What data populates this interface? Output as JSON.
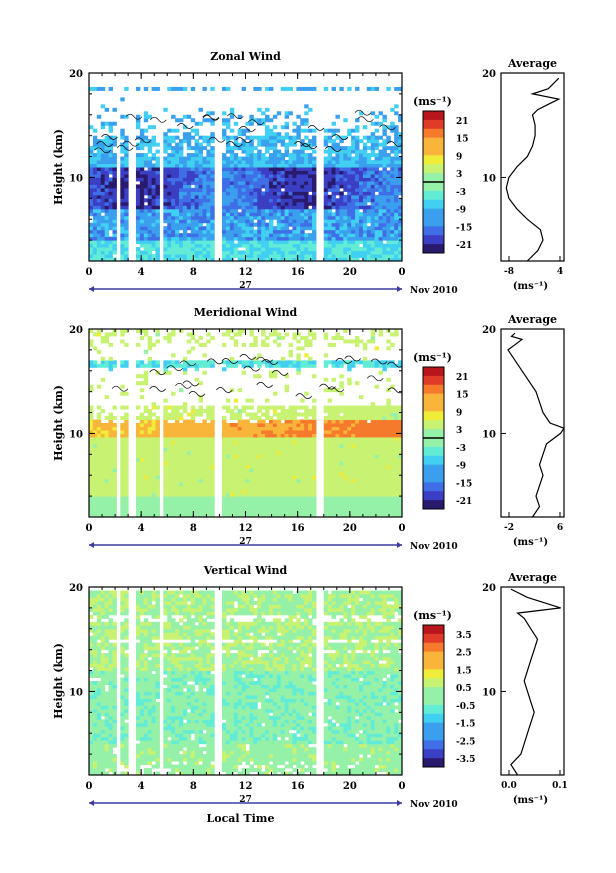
{
  "date_label": "Nov 2010",
  "day_label": "27",
  "xlabel": "Local Time",
  "panels": [
    {
      "title": "Zonal Wind",
      "ylabel": "Height (km)",
      "field": "zonal",
      "colorbar_unit": "(ms⁻¹)",
      "colorbar_ticks": [
        "21",
        "15",
        "9",
        "3",
        "-3",
        "-9",
        "-15",
        "-21"
      ],
      "avg_title": "Average",
      "avg_unit": "(ms⁻¹)",
      "avg_xticks": [
        "-8",
        "4"
      ]
    },
    {
      "title": "Meridional Wind",
      "ylabel": "Height (km)",
      "field": "meridional",
      "colorbar_unit": "(ms⁻¹)",
      "colorbar_ticks": [
        "21",
        "15",
        "9",
        "3",
        "-3",
        "-9",
        "-15",
        "-21"
      ],
      "avg_title": "Average",
      "avg_unit": "(ms⁻¹)",
      "avg_xticks": [
        "-2",
        "6"
      ]
    },
    {
      "title": "Vertical Wind",
      "ylabel": "Height (km)",
      "field": "vertical",
      "colorbar_unit": "(ms⁻¹)",
      "colorbar_ticks": [
        "3.5",
        "2.5",
        "1.5",
        "0.5",
        "-0.5",
        "-1.5",
        "-2.5",
        "-3.5"
      ],
      "avg_title": "Average",
      "avg_unit": "(ms⁻¹)",
      "avg_xticks": [
        "0.0",
        "0.1"
      ]
    }
  ],
  "chart_data": [
    {
      "type": "heatmap",
      "title": "Zonal Wind",
      "ylabel": "Height (km)",
      "xlabel": "",
      "xlim": [
        0,
        24
      ],
      "ylim": [
        2,
        20
      ],
      "x_ticks": [
        "0",
        "4",
        "8",
        "12",
        "16",
        "20",
        "0"
      ],
      "y_ticks": [
        "10",
        "20"
      ],
      "colorbar": {
        "unit": "(ms⁻¹)",
        "range": [
          -24,
          24
        ],
        "ticks": [
          "21",
          "15",
          "9",
          "3",
          "-3",
          "-9",
          "-15",
          "-21"
        ]
      },
      "description_values": {
        "dominant_range": [
          -21,
          -3
        ],
        "data_top_km": 17
      }
    },
    {
      "type": "line",
      "title": "Average",
      "xlabel": "(ms⁻¹)",
      "xlim": [
        -8,
        4
      ],
      "ylim": [
        2,
        20
      ],
      "x": [
        -3.0,
        -1.0,
        0.0,
        -0.5,
        -3.0,
        -5.0,
        -6.5,
        -7.0,
        -6.5,
        -5.0,
        -3.0,
        -2.0,
        -1.5,
        -1.5,
        -2.0,
        -1.0,
        1.0,
        3.0,
        -2.0,
        1.0,
        3.0
      ],
      "y": [
        2,
        3,
        4,
        5,
        6,
        7,
        8,
        9,
        10,
        11,
        12,
        13,
        14,
        15,
        16,
        16.5,
        17,
        17.5,
        18,
        18.5,
        19.5
      ]
    },
    {
      "type": "heatmap",
      "title": "Meridional Wind",
      "ylabel": "Height (km)",
      "xlabel": "",
      "xlim": [
        0,
        24
      ],
      "ylim": [
        2,
        20
      ],
      "x_ticks": [
        "0",
        "4",
        "8",
        "12",
        "16",
        "20",
        "0"
      ],
      "y_ticks": [
        "10",
        "20"
      ],
      "colorbar": {
        "unit": "(ms⁻¹)",
        "range": [
          -24,
          24
        ],
        "ticks": [
          "21",
          "15",
          "9",
          "3",
          "-3",
          "-9",
          "-15",
          "-21"
        ]
      },
      "description_values": {
        "dominant_range": [
          -3,
          9
        ],
        "data_top_km": 18
      }
    },
    {
      "type": "line",
      "title": "Average",
      "xlabel": "(ms⁻¹)",
      "xlim": [
        -3,
        6
      ],
      "ylim": [
        2,
        20
      ],
      "x": [
        1.5,
        2.5,
        2.0,
        2.5,
        3.0,
        2.5,
        3.0,
        3.5,
        5.5,
        6.0,
        4.0,
        3.0,
        2.5,
        2.0,
        1.0,
        0.0,
        -1.0,
        -2.0,
        -1.0,
        0.0,
        -1.5,
        -1.0
      ],
      "y": [
        2,
        3,
        4,
        5,
        6,
        7,
        8,
        9,
        10,
        10.5,
        11,
        12,
        13,
        14,
        15,
        16,
        17,
        18,
        18.5,
        19,
        19.3,
        19.6
      ]
    },
    {
      "type": "heatmap",
      "title": "Vertical Wind",
      "ylabel": "Height (km)",
      "xlabel": "Local Time",
      "xlim": [
        0,
        24
      ],
      "ylim": [
        2,
        20
      ],
      "x_ticks": [
        "0",
        "4",
        "8",
        "12",
        "16",
        "20",
        "0"
      ],
      "y_ticks": [
        "10",
        "20"
      ],
      "colorbar": {
        "unit": "(ms⁻¹)",
        "range": [
          -4,
          4
        ],
        "ticks": [
          "3.5",
          "2.5",
          "1.5",
          "0.5",
          "-0.5",
          "-1.5",
          "-2.5",
          "-3.5"
        ]
      },
      "description_values": {
        "dominant_range": [
          -0.5,
          0.5
        ],
        "data_top_km": 20
      }
    },
    {
      "type": "line",
      "title": "Average",
      "xlabel": "(ms⁻¹)",
      "xlim": [
        -0.03,
        0.16
      ],
      "ylim": [
        2,
        20
      ],
      "x": [
        0.02,
        0.0,
        0.03,
        0.04,
        0.05,
        0.06,
        0.07,
        0.06,
        0.05,
        0.04,
        0.05,
        0.06,
        0.07,
        0.08,
        0.06,
        0.04,
        0.02,
        0.15,
        0.05,
        0.0
      ],
      "y": [
        2,
        3,
        4,
        5,
        6,
        7,
        8,
        9,
        10,
        11,
        12,
        13,
        14,
        15,
        16,
        17,
        17.5,
        18,
        19,
        19.8
      ]
    }
  ]
}
